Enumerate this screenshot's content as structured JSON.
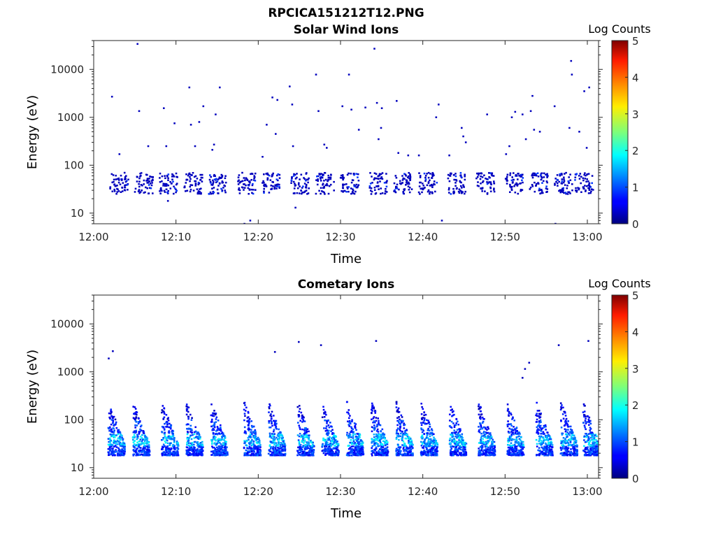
{
  "figure": {
    "title": "RPCICA151212T12.PNG",
    "colorbar_label": "Log Counts",
    "colorbar_ticks": [
      "0",
      "1",
      "2",
      "3",
      "4",
      "5"
    ]
  },
  "chart_data": [
    {
      "type": "heatmap",
      "title": "Solar Wind Ions",
      "xlabel": "Time",
      "ylabel": "Energy (eV)",
      "x_ticks": [
        "12:00",
        "12:10",
        "12:20",
        "12:30",
        "12:40",
        "12:50",
        "13:00"
      ],
      "y_ticks": [
        "10",
        "100",
        "1000",
        "10000"
      ],
      "y_scale": "log",
      "ylim": [
        6,
        40000
      ],
      "xlim": [
        "12:00",
        "13:01"
      ],
      "colorbar": {
        "label": "Log Counts",
        "range": [
          0,
          5
        ],
        "colormap": "jet"
      },
      "clusters_minutes": [
        3,
        6,
        9,
        12,
        15,
        18.5,
        21.5,
        25,
        28,
        31,
        34.5,
        37.5,
        40.5,
        44,
        47.5,
        51,
        54,
        57,
        59.5
      ],
      "typical_log_counts": 0.3,
      "cluster_energy_range_eV": [
        25,
        70
      ],
      "sparse_high_energy_points": [
        {
          "t": 2.2,
          "e": 2700
        },
        {
          "t": 3.1,
          "e": 170
        },
        {
          "t": 5.3,
          "e": 34000
        },
        {
          "t": 5.5,
          "e": 1350
        },
        {
          "t": 6.6,
          "e": 250
        },
        {
          "t": 8.5,
          "e": 1550
        },
        {
          "t": 8.8,
          "e": 250
        },
        {
          "t": 9.8,
          "e": 750
        },
        {
          "t": 11.6,
          "e": 4200
        },
        {
          "t": 11.8,
          "e": 700
        },
        {
          "t": 12.3,
          "e": 250
        },
        {
          "t": 12.8,
          "e": 800
        },
        {
          "t": 13.3,
          "e": 1700
        },
        {
          "t": 15.3,
          "e": 4200
        },
        {
          "t": 14.4,
          "e": 210
        },
        {
          "t": 14.6,
          "e": 270
        },
        {
          "t": 14.8,
          "e": 1150
        },
        {
          "t": 20.5,
          "e": 150
        },
        {
          "t": 21.0,
          "e": 700
        },
        {
          "t": 21.7,
          "e": 2600
        },
        {
          "t": 22.1,
          "e": 450
        },
        {
          "t": 22.3,
          "e": 2300
        },
        {
          "t": 23.8,
          "e": 4400
        },
        {
          "t": 24.1,
          "e": 1850
        },
        {
          "t": 24.2,
          "e": 250
        },
        {
          "t": 27.0,
          "e": 7800
        },
        {
          "t": 27.3,
          "e": 1350
        },
        {
          "t": 28.0,
          "e": 270
        },
        {
          "t": 28.3,
          "e": 230
        },
        {
          "t": 30.2,
          "e": 1700
        },
        {
          "t": 31.0,
          "e": 7800
        },
        {
          "t": 31.3,
          "e": 1450
        },
        {
          "t": 32.2,
          "e": 550
        },
        {
          "t": 33.0,
          "e": 1600
        },
        {
          "t": 34.1,
          "e": 27000
        },
        {
          "t": 34.4,
          "e": 2000
        },
        {
          "t": 34.6,
          "e": 350
        },
        {
          "t": 34.9,
          "e": 600
        },
        {
          "t": 35.0,
          "e": 1550
        },
        {
          "t": 36.8,
          "e": 2200
        },
        {
          "t": 37.0,
          "e": 180
        },
        {
          "t": 38.2,
          "e": 160
        },
        {
          "t": 39.5,
          "e": 160
        },
        {
          "t": 41.6,
          "e": 1000
        },
        {
          "t": 41.9,
          "e": 1850
        },
        {
          "t": 43.2,
          "e": 160
        },
        {
          "t": 44.7,
          "e": 600
        },
        {
          "t": 44.9,
          "e": 400
        },
        {
          "t": 45.2,
          "e": 300
        },
        {
          "t": 47.8,
          "e": 1150
        },
        {
          "t": 50.1,
          "e": 170
        },
        {
          "t": 50.5,
          "e": 250
        },
        {
          "t": 50.8,
          "e": 1000
        },
        {
          "t": 51.2,
          "e": 1300
        },
        {
          "t": 52.1,
          "e": 1150
        },
        {
          "t": 52.5,
          "e": 350
        },
        {
          "t": 53.1,
          "e": 1350
        },
        {
          "t": 53.3,
          "e": 2800
        },
        {
          "t": 53.5,
          "e": 550
        },
        {
          "t": 54.2,
          "e": 500
        },
        {
          "t": 56.0,
          "e": 1700
        },
        {
          "t": 57.8,
          "e": 600
        },
        {
          "t": 58.0,
          "e": 15000
        },
        {
          "t": 58.1,
          "e": 7800
        },
        {
          "t": 59.0,
          "e": 500
        },
        {
          "t": 59.6,
          "e": 3500
        },
        {
          "t": 59.9,
          "e": 230
        },
        {
          "t": 60.2,
          "e": 4200
        },
        {
          "t": 18.3,
          "e": 6
        },
        {
          "t": 19.0,
          "e": 7
        },
        {
          "t": 24.5,
          "e": 13
        },
        {
          "t": 42.3,
          "e": 7
        },
        {
          "t": 56.1,
          "e": 6
        },
        {
          "t": 9.0,
          "e": 18
        }
      ]
    },
    {
      "type": "heatmap",
      "title": "Cometary Ions",
      "xlabel": "Time",
      "ylabel": "Energy (eV)",
      "x_ticks": [
        "12:00",
        "12:10",
        "12:20",
        "12:30",
        "12:40",
        "12:50",
        "13:00"
      ],
      "y_ticks": [
        "10",
        "100",
        "1000",
        "10000"
      ],
      "y_scale": "log",
      "ylim": [
        6,
        40000
      ],
      "xlim": [
        "12:00",
        "13:01"
      ],
      "colorbar": {
        "label": "Log Counts",
        "range": [
          0,
          5
        ],
        "colormap": "jet"
      },
      "clusters_minutes": [
        2.5,
        5.5,
        9,
        12,
        15,
        19,
        22,
        25.5,
        28.5,
        31.5,
        34.5,
        37.5,
        40.5,
        44,
        47.5,
        51,
        54.5,
        57.5,
        60.2
      ],
      "cluster_energy_range_eV": [
        18,
        250
      ],
      "peak_log_counts": 2.0,
      "sparse_high_energy_points": [
        {
          "t": 1.8,
          "e": 1900
        },
        {
          "t": 2.3,
          "e": 2700
        },
        {
          "t": 22.0,
          "e": 2600
        },
        {
          "t": 24.9,
          "e": 4200
        },
        {
          "t": 27.6,
          "e": 3600
        },
        {
          "t": 34.3,
          "e": 4400
        },
        {
          "t": 52.1,
          "e": 750
        },
        {
          "t": 52.4,
          "e": 1150
        },
        {
          "t": 52.9,
          "e": 1550
        },
        {
          "t": 56.5,
          "e": 3600
        },
        {
          "t": 60.1,
          "e": 4400
        }
      ]
    }
  ]
}
